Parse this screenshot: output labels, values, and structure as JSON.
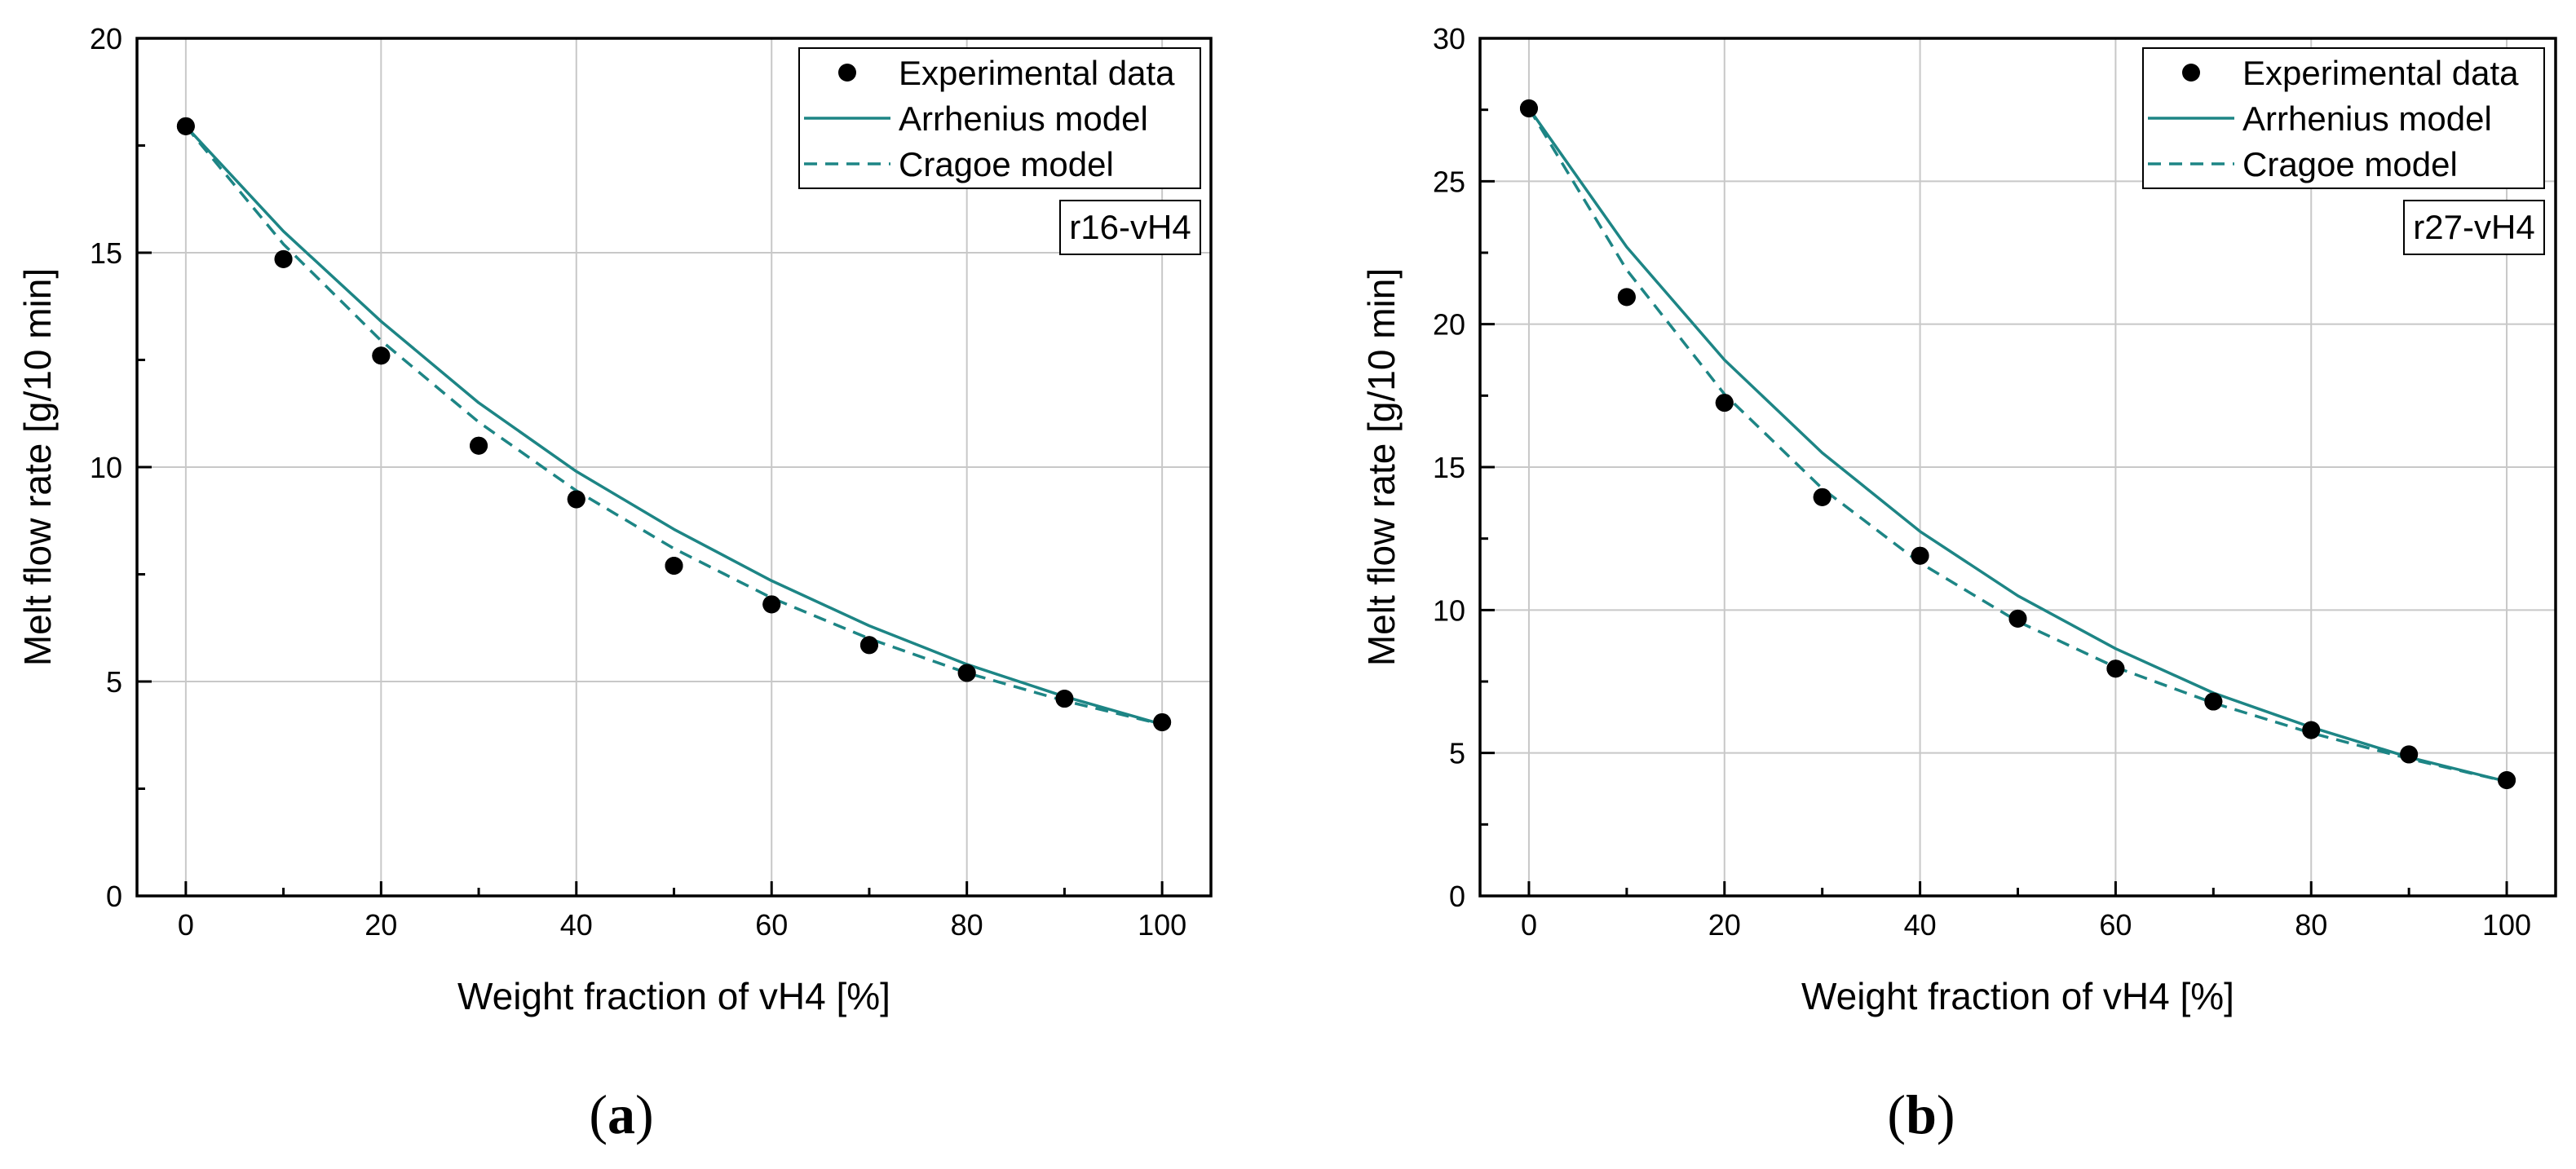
{
  "chart_data": [
    {
      "type": "line",
      "panel_label": "a",
      "tag": "r16-vH4",
      "xlabel": "Weight fraction of vH4 [%]",
      "ylabel": "Melt flow rate [g/10 min]",
      "xlim": [
        -5,
        105
      ],
      "ylim": [
        0,
        20
      ],
      "xticks": [
        0,
        20,
        40,
        60,
        80,
        100
      ],
      "yticks": [
        0,
        5,
        10,
        15,
        20
      ],
      "grid": true,
      "legend_position": "top-right",
      "series": [
        {
          "name": "Experimental data",
          "kind": "scatter",
          "x": [
            0,
            10,
            20,
            30,
            40,
            50,
            60,
            70,
            80,
            90,
            100
          ],
          "values": [
            17.95,
            14.85,
            12.6,
            10.5,
            9.25,
            7.7,
            6.8,
            5.85,
            5.2,
            4.6,
            4.05
          ]
        },
        {
          "name": "Arrhenius model",
          "kind": "line-solid",
          "x": [
            0,
            10,
            20,
            30,
            40,
            50,
            60,
            70,
            80,
            90,
            100
          ],
          "values": [
            17.95,
            15.5,
            13.4,
            11.5,
            9.9,
            8.55,
            7.35,
            6.3,
            5.4,
            4.65,
            4.0
          ]
        },
        {
          "name": "Cragoe model",
          "kind": "line-dashed",
          "x": [
            0,
            10,
            20,
            30,
            40,
            50,
            60,
            70,
            80,
            90,
            100
          ],
          "values": [
            17.95,
            15.2,
            12.95,
            11.05,
            9.45,
            8.1,
            6.95,
            6.0,
            5.2,
            4.55,
            4.0
          ]
        }
      ]
    },
    {
      "type": "line",
      "panel_label": "b",
      "tag": "r27-vH4",
      "xlabel": "Weight fraction of vH4 [%]",
      "ylabel": "Melt flow rate [g/10 min]",
      "xlim": [
        -5,
        105
      ],
      "ylim": [
        0,
        30
      ],
      "xticks": [
        0,
        20,
        40,
        60,
        80,
        100
      ],
      "yticks": [
        0,
        5,
        10,
        15,
        20,
        25,
        30
      ],
      "grid": true,
      "legend_position": "top-right",
      "series": [
        {
          "name": "Experimental data",
          "kind": "scatter",
          "x": [
            0,
            10,
            20,
            30,
            40,
            50,
            60,
            70,
            80,
            90,
            100
          ],
          "values": [
            27.55,
            20.95,
            17.25,
            13.95,
            11.9,
            9.7,
            7.95,
            6.8,
            5.8,
            4.95,
            4.05
          ]
        },
        {
          "name": "Arrhenius model",
          "kind": "line-solid",
          "x": [
            0,
            10,
            20,
            30,
            40,
            50,
            60,
            70,
            80,
            90,
            100
          ],
          "values": [
            27.55,
            22.7,
            18.75,
            15.5,
            12.75,
            10.5,
            8.65,
            7.1,
            5.9,
            4.85,
            4.0
          ]
        },
        {
          "name": "Cragoe model",
          "kind": "line-dashed",
          "x": [
            0,
            10,
            20,
            30,
            40,
            50,
            60,
            70,
            80,
            90,
            100
          ],
          "values": [
            27.55,
            21.9,
            17.55,
            14.25,
            11.65,
            9.6,
            8.0,
            6.75,
            5.7,
            4.8,
            4.0
          ]
        }
      ]
    }
  ],
  "colors": {
    "model_line": "#1d8585",
    "marker": "#000000",
    "grid": "#c8c8c8",
    "axis": "#000000"
  }
}
